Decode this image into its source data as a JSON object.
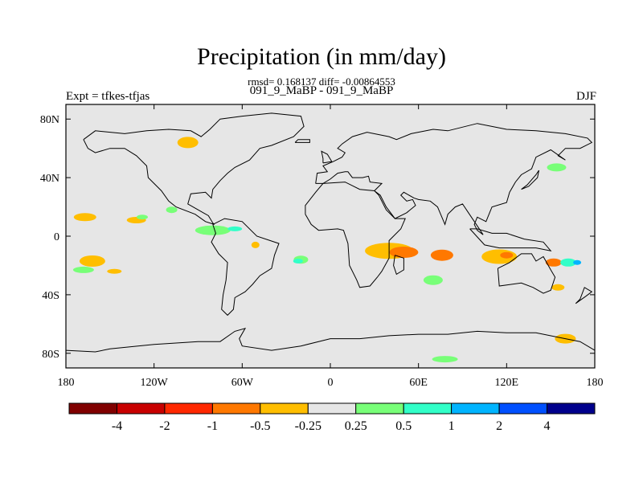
{
  "title": "Precipitation (in mm/day)",
  "subtitle": "rmsd= 0.168137 diff= -0.00864553",
  "experiments": "091_9_MaBP - 091_9_MaBP",
  "left_label": "Expt = tfkes-tfjas",
  "season": "DJF",
  "map": {
    "projection": "cylindrical-equidistant",
    "background_color": "#e6e6e6",
    "x_ticks": [
      "180",
      "120W",
      "60W",
      "0",
      "60E",
      "120E",
      "180"
    ],
    "y_ticks": [
      "80N",
      "40N",
      "0",
      "40S",
      "80S"
    ]
  },
  "colorbar": {
    "colors": [
      "#800000",
      "#c80000",
      "#ff2800",
      "#ff7800",
      "#ffbe00",
      "#e6e6e6",
      "#78ff78",
      "#32ffc8",
      "#00b4ff",
      "#0050ff",
      "#00008c"
    ],
    "labels": [
      "-4",
      "-2",
      "-1",
      "-0.5",
      "-0.25",
      "0.25",
      "0.5",
      "1",
      "2",
      "4"
    ]
  },
  "chart_data": {
    "type": "heatmap",
    "title": "Precipitation (in mm/day)",
    "subtitle": "rmsd= 0.168137 diff= -0.00864553",
    "x_range": [
      -180,
      180
    ],
    "y_range": [
      -90,
      90
    ],
    "levels": [
      -4,
      -2,
      -1,
      -0.5,
      -0.25,
      0.25,
      0.5,
      1,
      2,
      4
    ],
    "anomaly_regions": [
      {
        "lon": -97,
        "lat": 64,
        "value": -0.35
      },
      {
        "lon": -167,
        "lat": 13,
        "value": -0.35
      },
      {
        "lon": -132,
        "lat": 11,
        "value": -0.35
      },
      {
        "lon": -128,
        "lat": 13,
        "value": 0.35
      },
      {
        "lon": -108,
        "lat": 18,
        "value": 0.35
      },
      {
        "lon": -80,
        "lat": 4,
        "value": 0.35
      },
      {
        "lon": -65,
        "lat": 5,
        "value": 0.7
      },
      {
        "lon": -51,
        "lat": -6,
        "value": -0.35
      },
      {
        "lon": -162,
        "lat": -17,
        "value": -0.35
      },
      {
        "lon": -168,
        "lat": -23,
        "value": 0.35
      },
      {
        "lon": -147,
        "lat": -24,
        "value": -0.35
      },
      {
        "lon": -20,
        "lat": -16,
        "value": 0.35
      },
      {
        "lon": -22,
        "lat": -17,
        "value": 0.7
      },
      {
        "lon": 40,
        "lat": -10,
        "value": -0.35
      },
      {
        "lon": 50,
        "lat": -11,
        "value": -0.7
      },
      {
        "lon": 76,
        "lat": -13,
        "value": -0.7
      },
      {
        "lon": 70,
        "lat": -30,
        "value": 0.35
      },
      {
        "lon": 115,
        "lat": -14,
        "value": -0.35
      },
      {
        "lon": 120,
        "lat": -13,
        "value": -0.7
      },
      {
        "lon": 152,
        "lat": -18,
        "value": -0.7
      },
      {
        "lon": 162,
        "lat": -18,
        "value": 0.7
      },
      {
        "lon": 168,
        "lat": -18,
        "value": 1.5
      },
      {
        "lon": 155,
        "lat": -35,
        "value": -0.35
      },
      {
        "lon": 160,
        "lat": -70,
        "value": -0.35
      },
      {
        "lon": 154,
        "lat": 47,
        "value": 0.35
      },
      {
        "lon": 78,
        "lat": -84,
        "value": 0.35
      }
    ]
  }
}
